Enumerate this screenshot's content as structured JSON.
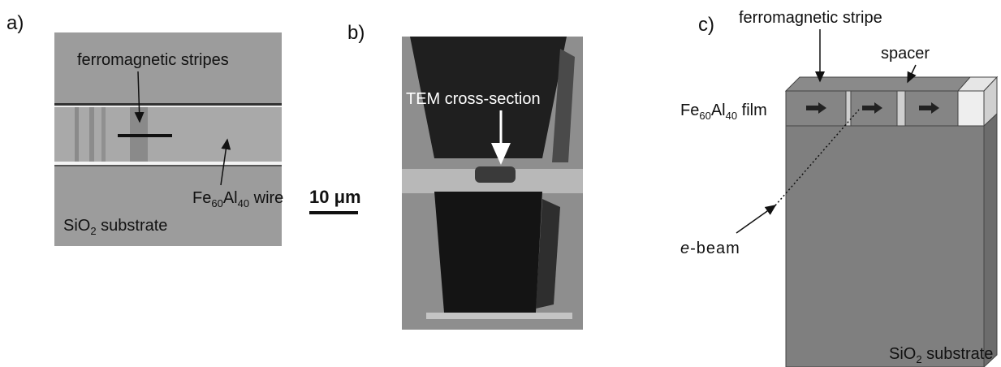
{
  "panel_a": {
    "label": "a)",
    "stripes_label": "ferromagnetic stripes",
    "wire_label": [
      "Fe",
      "60",
      "Al",
      "40",
      " wire"
    ],
    "substrate_label": [
      "SiO",
      "2",
      " substrate"
    ]
  },
  "panel_b": {
    "label": "b)",
    "section_label": "TEM cross-section",
    "scale_label": "10 μm"
  },
  "panel_c": {
    "label": "c)",
    "stripe_label": "ferromagnetic stripe",
    "spacer_label": "spacer",
    "film_label": [
      "Fe",
      "60",
      "Al",
      "40",
      " film"
    ],
    "beam_label": [
      "e",
      "-beam"
    ],
    "substrate_label": [
      "SiO",
      "2",
      " substrate"
    ]
  }
}
